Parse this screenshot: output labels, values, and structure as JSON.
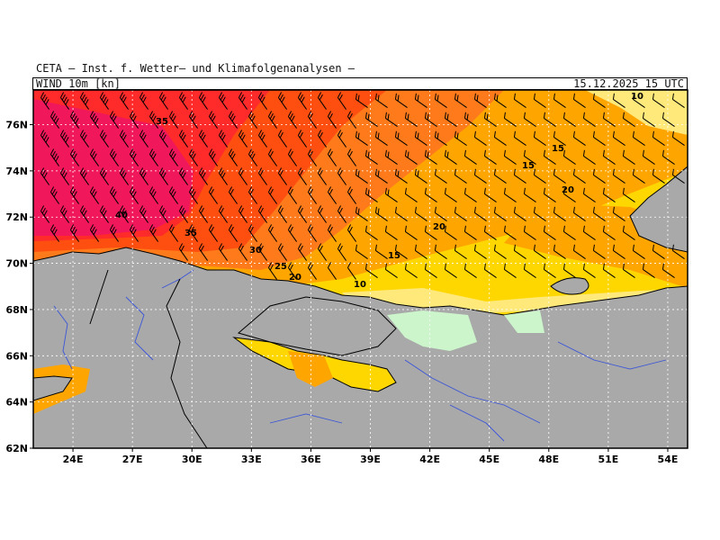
{
  "header": {
    "institute": "CETA – Inst. f. Wetter– und Klimafolgenanalysen –",
    "title": "WIND 10m [kn]",
    "datetime": "15.12.2025 15 UTC"
  },
  "map": {
    "lon_range": [
      22,
      55
    ],
    "lat_range": [
      62,
      77.5
    ],
    "lon_ticks": [
      "24E",
      "27E",
      "30E",
      "33E",
      "36E",
      "39E",
      "42E",
      "45E",
      "48E",
      "51E",
      "54E"
    ],
    "lat_ticks": [
      "62N",
      "64N",
      "66N",
      "68N",
      "70N",
      "72N",
      "74N",
      "76N"
    ],
    "contour_labels": [
      "35",
      "40",
      "35",
      "30",
      "25",
      "20",
      "10",
      "15",
      "20",
      "15",
      "20",
      "15",
      "10"
    ],
    "colors": {
      "land": "#a9a9a9",
      "wind_10_15": "#ffe97a",
      "wind_15_20": "#ffd700",
      "wind_20_25": "#ffa500",
      "wind_25_30": "#ff7a1a",
      "wind_30_35": "#ff4f10",
      "wind_35_40": "#ff2a2a",
      "wind_40_plus": "#f0185a",
      "calm_land": "#ccf5cc",
      "rivers": "#3a55d8",
      "borders": "#000000"
    }
  }
}
